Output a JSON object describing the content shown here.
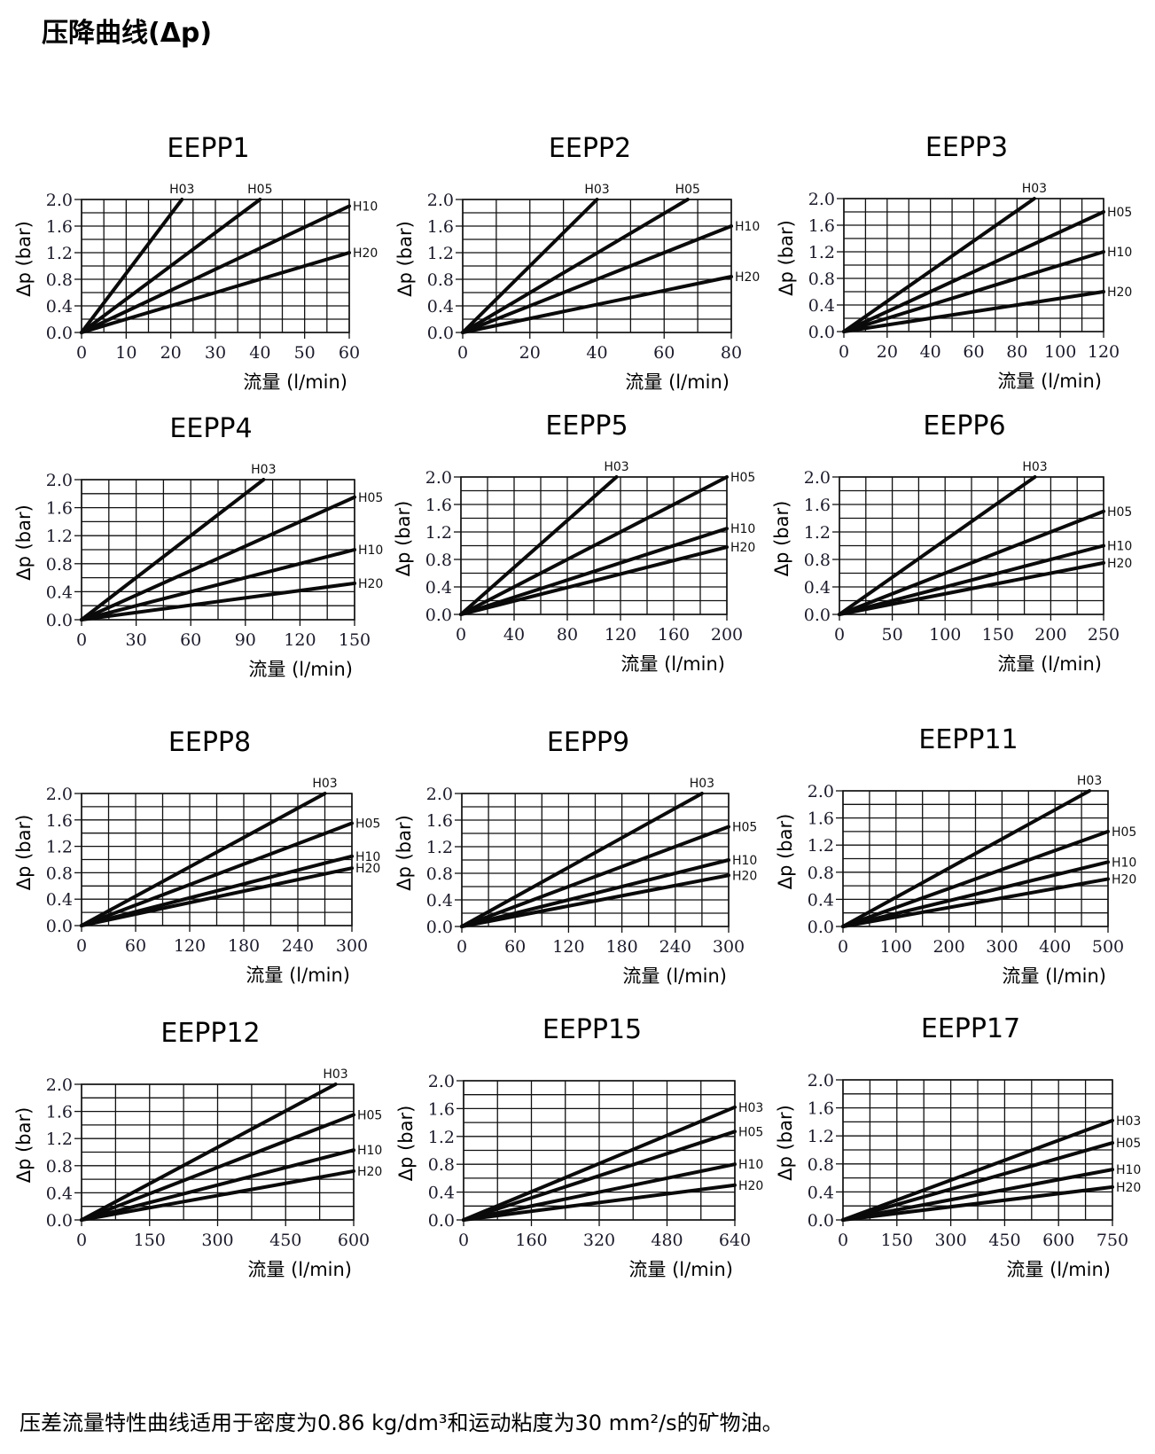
{
  "header": {
    "title": "压降曲线(Δp)"
  },
  "footnote": "压差流量特性曲线适用于密度为0.86 kg/dm³和运动粘度为30 mm²/s的矿物油。",
  "chart_data": [
    {
      "type": "line",
      "title": "EEPP1",
      "xlabel": "流量 (l/min)",
      "ylabel": "Δp (bar)",
      "xlim": [
        0,
        60
      ],
      "ylim": [
        0,
        2.0
      ],
      "grid": true,
      "x_grid_step": 5,
      "y_grid_step": 0.2,
      "xticks": [
        "0",
        "10",
        "20",
        "30",
        "40",
        "50",
        "60"
      ],
      "yticks": [
        "0.0",
        "0.4",
        "0.8",
        "1.2",
        "1.6",
        "2.0"
      ],
      "series": [
        {
          "name": "H03",
          "x": [
            0,
            22.5
          ],
          "y": [
            0,
            2.0
          ]
        },
        {
          "name": "H05",
          "x": [
            0,
            40
          ],
          "y": [
            0,
            2.0
          ]
        },
        {
          "name": "H10",
          "x": [
            0,
            60
          ],
          "y": [
            0,
            1.9
          ]
        },
        {
          "name": "H20",
          "x": [
            0,
            60
          ],
          "y": [
            0,
            1.2
          ]
        }
      ]
    },
    {
      "type": "line",
      "title": "EEPP2",
      "xlabel": "流量 (l/min)",
      "ylabel": "Δp (bar)",
      "xlim": [
        0,
        80
      ],
      "ylim": [
        0,
        2.0
      ],
      "grid": true,
      "x_grid_step": 10,
      "y_grid_step": 0.2,
      "xticks": [
        "0",
        "20",
        "40",
        "60",
        "80"
      ],
      "yticks": [
        "0.0",
        "0.4",
        "0.8",
        "1.2",
        "1.6",
        "2.0"
      ],
      "series": [
        {
          "name": "H03",
          "x": [
            0,
            40
          ],
          "y": [
            0,
            2.0
          ]
        },
        {
          "name": "H05",
          "x": [
            0,
            67
          ],
          "y": [
            0,
            2.0
          ]
        },
        {
          "name": "H10",
          "x": [
            0,
            80
          ],
          "y": [
            0,
            1.6
          ]
        },
        {
          "name": "H20",
          "x": [
            0,
            80
          ],
          "y": [
            0,
            0.84
          ]
        }
      ]
    },
    {
      "type": "line",
      "title": "EEPP3",
      "xlabel": "流量 (l/min)",
      "ylabel": "Δp (bar)",
      "xlim": [
        0,
        120
      ],
      "ylim": [
        0,
        2.0
      ],
      "grid": true,
      "x_grid_step": 10,
      "y_grid_step": 0.2,
      "xticks": [
        "0",
        "20",
        "40",
        "60",
        "80",
        "100",
        "120"
      ],
      "yticks": [
        "0.0",
        "0.4",
        "0.8",
        "1.2",
        "1.6",
        "2.0"
      ],
      "series": [
        {
          "name": "H03",
          "x": [
            0,
            88
          ],
          "y": [
            0,
            2.0
          ]
        },
        {
          "name": "H05",
          "x": [
            0,
            120
          ],
          "y": [
            0,
            1.8
          ]
        },
        {
          "name": "H10",
          "x": [
            0,
            120
          ],
          "y": [
            0,
            1.2
          ]
        },
        {
          "name": "H20",
          "x": [
            0,
            120
          ],
          "y": [
            0,
            0.6
          ]
        }
      ]
    },
    {
      "type": "line",
      "title": "EEPP4",
      "xlabel": "流量 (l/min)",
      "ylabel": "Δp (bar)",
      "xlim": [
        0,
        150
      ],
      "ylim": [
        0,
        2.0
      ],
      "grid": true,
      "x_grid_step": 15,
      "y_grid_step": 0.2,
      "xticks": [
        "0",
        "30",
        "60",
        "90",
        "120",
        "150"
      ],
      "yticks": [
        "0.0",
        "0.4",
        "0.8",
        "1.2",
        "1.6",
        "2.0"
      ],
      "series": [
        {
          "name": "H03",
          "x": [
            0,
            100
          ],
          "y": [
            0,
            2.0
          ]
        },
        {
          "name": "H05",
          "x": [
            0,
            150
          ],
          "y": [
            0,
            1.75
          ]
        },
        {
          "name": "H10",
          "x": [
            0,
            150
          ],
          "y": [
            0,
            1.0
          ]
        },
        {
          "name": "H20",
          "x": [
            0,
            150
          ],
          "y": [
            0,
            0.52
          ]
        }
      ]
    },
    {
      "type": "line",
      "title": "EEPP5",
      "xlabel": "流量 (l/min)",
      "ylabel": "Δp (bar)",
      "xlim": [
        0,
        200
      ],
      "ylim": [
        0,
        2.0
      ],
      "grid": true,
      "x_grid_step": 20,
      "y_grid_step": 0.2,
      "xticks": [
        "0",
        "40",
        "80",
        "120",
        "160",
        "200"
      ],
      "yticks": [
        "0.0",
        "0.4",
        "0.8",
        "1.2",
        "1.6",
        "2.0"
      ],
      "series": [
        {
          "name": "H03",
          "x": [
            0,
            117
          ],
          "y": [
            0,
            2.0
          ]
        },
        {
          "name": "H05",
          "x": [
            0,
            200
          ],
          "y": [
            0,
            2.0
          ]
        },
        {
          "name": "H10",
          "x": [
            0,
            200
          ],
          "y": [
            0,
            1.25
          ]
        },
        {
          "name": "H20",
          "x": [
            0,
            200
          ],
          "y": [
            0,
            0.98
          ]
        }
      ]
    },
    {
      "type": "line",
      "title": "EEPP6",
      "xlabel": "流量 (l/min)",
      "ylabel": "Δp (bar)",
      "xlim": [
        0,
        250
      ],
      "ylim": [
        0,
        2.0
      ],
      "grid": true,
      "x_grid_step": 25,
      "y_grid_step": 0.2,
      "xticks": [
        "0",
        "50",
        "100",
        "150",
        "200",
        "250"
      ],
      "yticks": [
        "0.0",
        "0.4",
        "0.8",
        "1.2",
        "1.6",
        "2.0"
      ],
      "series": [
        {
          "name": "H03",
          "x": [
            0,
            185
          ],
          "y": [
            0,
            2.0
          ]
        },
        {
          "name": "H05",
          "x": [
            0,
            250
          ],
          "y": [
            0,
            1.5
          ]
        },
        {
          "name": "H10",
          "x": [
            0,
            250
          ],
          "y": [
            0,
            1.0
          ]
        },
        {
          "name": "H20",
          "x": [
            0,
            250
          ],
          "y": [
            0,
            0.75
          ]
        }
      ]
    },
    {
      "type": "line",
      "title": "EEPP8",
      "xlabel": "流量 (l/min)",
      "ylabel": "Δp (bar)",
      "xlim": [
        0,
        300
      ],
      "ylim": [
        0,
        2.0
      ],
      "grid": true,
      "x_grid_step": 30,
      "y_grid_step": 0.2,
      "xticks": [
        "0",
        "60",
        "120",
        "180",
        "240",
        "300"
      ],
      "yticks": [
        "0.0",
        "0.4",
        "0.8",
        "1.2",
        "1.6",
        "2.0"
      ],
      "series": [
        {
          "name": "H03",
          "x": [
            0,
            270
          ],
          "y": [
            0,
            2.0
          ]
        },
        {
          "name": "H05",
          "x": [
            0,
            300
          ],
          "y": [
            0,
            1.55
          ]
        },
        {
          "name": "H10",
          "x": [
            0,
            300
          ],
          "y": [
            0,
            1.05
          ]
        },
        {
          "name": "H20",
          "x": [
            0,
            300
          ],
          "y": [
            0,
            0.87
          ]
        }
      ]
    },
    {
      "type": "line",
      "title": "EEPP9",
      "xlabel": "流量 (l/min)",
      "ylabel": "Δp (bar)",
      "xlim": [
        0,
        300
      ],
      "ylim": [
        0,
        2.0
      ],
      "grid": true,
      "x_grid_step": 30,
      "y_grid_step": 0.2,
      "xticks": [
        "0",
        "60",
        "120",
        "180",
        "240",
        "300"
      ],
      "yticks": [
        "0.0",
        "0.4",
        "0.8",
        "1.2",
        "1.6",
        "2.0"
      ],
      "series": [
        {
          "name": "H03",
          "x": [
            0,
            270
          ],
          "y": [
            0,
            2.0
          ]
        },
        {
          "name": "H05",
          "x": [
            0,
            300
          ],
          "y": [
            0,
            1.5
          ]
        },
        {
          "name": "H10",
          "x": [
            0,
            300
          ],
          "y": [
            0,
            1.0
          ]
        },
        {
          "name": "H20",
          "x": [
            0,
            300
          ],
          "y": [
            0,
            0.77
          ]
        }
      ]
    },
    {
      "type": "line",
      "title": "EEPP11",
      "xlabel": "流量 (l/min)",
      "ylabel": "Δp (bar)",
      "xlim": [
        0,
        500
      ],
      "ylim": [
        0,
        2.0
      ],
      "grid": true,
      "x_grid_step": 50,
      "y_grid_step": 0.2,
      "xticks": [
        "0",
        "100",
        "200",
        "300",
        "400",
        "500"
      ],
      "yticks": [
        "0.0",
        "0.4",
        "0.8",
        "1.2",
        "1.6",
        "2.0"
      ],
      "series": [
        {
          "name": "H03",
          "x": [
            0,
            465
          ],
          "y": [
            0,
            2.0
          ]
        },
        {
          "name": "H05",
          "x": [
            0,
            500
          ],
          "y": [
            0,
            1.4
          ]
        },
        {
          "name": "H10",
          "x": [
            0,
            500
          ],
          "y": [
            0,
            0.95
          ]
        },
        {
          "name": "H20",
          "x": [
            0,
            500
          ],
          "y": [
            0,
            0.7
          ]
        }
      ]
    },
    {
      "type": "line",
      "title": "EEPP12",
      "xlabel": "流量 (l/min)",
      "ylabel": "Δp (bar)",
      "xlim": [
        0,
        600
      ],
      "ylim": [
        0,
        2.0
      ],
      "grid": true,
      "x_grid_step": 75,
      "y_grid_step": 0.2,
      "xticks": [
        "0",
        "150",
        "300",
        "450",
        "600"
      ],
      "yticks": [
        "0.0",
        "0.4",
        "0.8",
        "1.2",
        "1.6",
        "2.0"
      ],
      "series": [
        {
          "name": "H03",
          "x": [
            0,
            560
          ],
          "y": [
            0,
            2.0
          ]
        },
        {
          "name": "H05",
          "x": [
            0,
            600
          ],
          "y": [
            0,
            1.55
          ]
        },
        {
          "name": "H10",
          "x": [
            0,
            600
          ],
          "y": [
            0,
            1.03
          ]
        },
        {
          "name": "H20",
          "x": [
            0,
            600
          ],
          "y": [
            0,
            0.72
          ]
        }
      ]
    },
    {
      "type": "line",
      "title": "EEPP15",
      "xlabel": "流量 (l/min)",
      "ylabel": "Δp (bar)",
      "xlim": [
        0,
        640
      ],
      "ylim": [
        0,
        2.0
      ],
      "grid": true,
      "x_grid_step": 80,
      "y_grid_step": 0.2,
      "xticks": [
        "0",
        "160",
        "320",
        "480",
        "640"
      ],
      "yticks": [
        "0.0",
        "0.4",
        "0.8",
        "1.2",
        "1.6",
        "2.0"
      ],
      "series": [
        {
          "name": "H03",
          "x": [
            0,
            640
          ],
          "y": [
            0,
            1.62
          ]
        },
        {
          "name": "H05",
          "x": [
            0,
            640
          ],
          "y": [
            0,
            1.27
          ]
        },
        {
          "name": "H10",
          "x": [
            0,
            640
          ],
          "y": [
            0,
            0.8
          ]
        },
        {
          "name": "H20",
          "x": [
            0,
            640
          ],
          "y": [
            0,
            0.5
          ]
        }
      ]
    },
    {
      "type": "line",
      "title": "EEPP17",
      "xlabel": "流量 (l/min)",
      "ylabel": "Δp (bar)",
      "xlim": [
        0,
        750
      ],
      "ylim": [
        0,
        2.0
      ],
      "grid": true,
      "x_grid_step": 75,
      "y_grid_step": 0.2,
      "xticks": [
        "0",
        "150",
        "300",
        "450",
        "600",
        "750"
      ],
      "yticks": [
        "0.0",
        "0.4",
        "0.8",
        "1.2",
        "1.6",
        "2.0"
      ],
      "series": [
        {
          "name": "H03",
          "x": [
            0,
            750
          ],
          "y": [
            0,
            1.42
          ]
        },
        {
          "name": "H05",
          "x": [
            0,
            750
          ],
          "y": [
            0,
            1.1
          ]
        },
        {
          "name": "H10",
          "x": [
            0,
            750
          ],
          "y": [
            0,
            0.72
          ]
        },
        {
          "name": "H20",
          "x": [
            0,
            750
          ],
          "y": [
            0,
            0.47
          ]
        }
      ]
    }
  ]
}
